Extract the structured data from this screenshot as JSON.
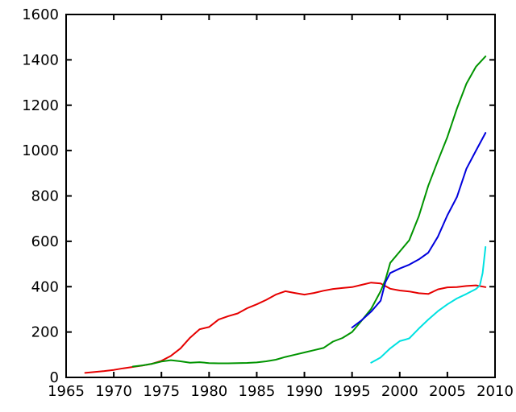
{
  "chart_data": {
    "type": "line",
    "title": "",
    "xlabel": "",
    "ylabel": "",
    "xlim": [
      1965,
      2010
    ],
    "ylim": [
      0,
      1600
    ],
    "x_ticks": [
      1965,
      1970,
      1975,
      1980,
      1985,
      1990,
      1995,
      2000,
      2005,
      2010
    ],
    "y_ticks": [
      0,
      200,
      400,
      600,
      800,
      1000,
      1200,
      1400,
      1600
    ],
    "grid": false,
    "legend_position": "none",
    "background_color": "#ffffff",
    "border_color": "#000000",
    "tick_style": "inward-mirrored",
    "series": [
      {
        "name": "red-series",
        "color": "#e60000",
        "points": [
          [
            1967,
            20
          ],
          [
            1968,
            24
          ],
          [
            1969,
            28
          ],
          [
            1970,
            33
          ],
          [
            1971,
            40
          ],
          [
            1972,
            46
          ],
          [
            1973,
            52
          ],
          [
            1974,
            60
          ],
          [
            1975,
            73
          ],
          [
            1976,
            95
          ],
          [
            1977,
            128
          ],
          [
            1978,
            175
          ],
          [
            1979,
            212
          ],
          [
            1980,
            222
          ],
          [
            1981,
            255
          ],
          [
            1982,
            270
          ],
          [
            1983,
            282
          ],
          [
            1984,
            305
          ],
          [
            1985,
            322
          ],
          [
            1986,
            342
          ],
          [
            1987,
            365
          ],
          [
            1988,
            380
          ],
          [
            1989,
            372
          ],
          [
            1990,
            365
          ],
          [
            1991,
            372
          ],
          [
            1992,
            382
          ],
          [
            1993,
            390
          ],
          [
            1994,
            394
          ],
          [
            1995,
            398
          ],
          [
            1996,
            408
          ],
          [
            1997,
            418
          ],
          [
            1998,
            414
          ],
          [
            1999,
            391
          ],
          [
            2000,
            383
          ],
          [
            2001,
            379
          ],
          [
            2002,
            371
          ],
          [
            2003,
            368
          ],
          [
            2004,
            388
          ],
          [
            2005,
            397
          ],
          [
            2006,
            398
          ],
          [
            2007,
            403
          ],
          [
            2008,
            406
          ],
          [
            2009,
            398
          ]
        ]
      },
      {
        "name": "green-series",
        "color": "#009400",
        "points": [
          [
            1972,
            48
          ],
          [
            1973,
            53
          ],
          [
            1974,
            60
          ],
          [
            1975,
            70
          ],
          [
            1976,
            76
          ],
          [
            1977,
            71
          ],
          [
            1978,
            65
          ],
          [
            1979,
            67
          ],
          [
            1980,
            63
          ],
          [
            1981,
            62
          ],
          [
            1982,
            62
          ],
          [
            1983,
            63
          ],
          [
            1984,
            64
          ],
          [
            1985,
            66
          ],
          [
            1986,
            71
          ],
          [
            1987,
            78
          ],
          [
            1988,
            90
          ],
          [
            1989,
            100
          ],
          [
            1990,
            110
          ],
          [
            1991,
            120
          ],
          [
            1992,
            130
          ],
          [
            1993,
            158
          ],
          [
            1994,
            174
          ],
          [
            1995,
            200
          ],
          [
            1996,
            250
          ],
          [
            1997,
            302
          ],
          [
            1998,
            380
          ],
          [
            1998.5,
            430
          ],
          [
            1999,
            505
          ],
          [
            2000,
            555
          ],
          [
            2001,
            605
          ],
          [
            2002,
            710
          ],
          [
            2003,
            845
          ],
          [
            2004,
            955
          ],
          [
            2005,
            1060
          ],
          [
            2006,
            1185
          ],
          [
            2007,
            1295
          ],
          [
            2008,
            1370
          ],
          [
            2009,
            1415
          ]
        ]
      },
      {
        "name": "blue-series",
        "color": "#0000dd",
        "points": [
          [
            1995,
            220
          ],
          [
            1996,
            252
          ],
          [
            1997,
            290
          ],
          [
            1998,
            338
          ],
          [
            1998.5,
            420
          ],
          [
            1999,
            460
          ],
          [
            2000,
            480
          ],
          [
            2001,
            497
          ],
          [
            2002,
            520
          ],
          [
            2003,
            550
          ],
          [
            2004,
            620
          ],
          [
            2005,
            715
          ],
          [
            2006,
            795
          ],
          [
            2007,
            920
          ],
          [
            2008,
            1000
          ],
          [
            2009,
            1078
          ]
        ]
      },
      {
        "name": "cyan-series",
        "color": "#00e1e1",
        "points": [
          [
            1997,
            65
          ],
          [
            1998,
            88
          ],
          [
            1999,
            128
          ],
          [
            2000,
            160
          ],
          [
            2000.7,
            168
          ],
          [
            2001,
            172
          ],
          [
            2002,
            215
          ],
          [
            2003,
            255
          ],
          [
            2004,
            292
          ],
          [
            2005,
            322
          ],
          [
            2006,
            348
          ],
          [
            2007,
            368
          ],
          [
            2008,
            390
          ],
          [
            2008.4,
            405
          ],
          [
            2008.7,
            460
          ],
          [
            2009,
            575
          ]
        ]
      }
    ]
  }
}
